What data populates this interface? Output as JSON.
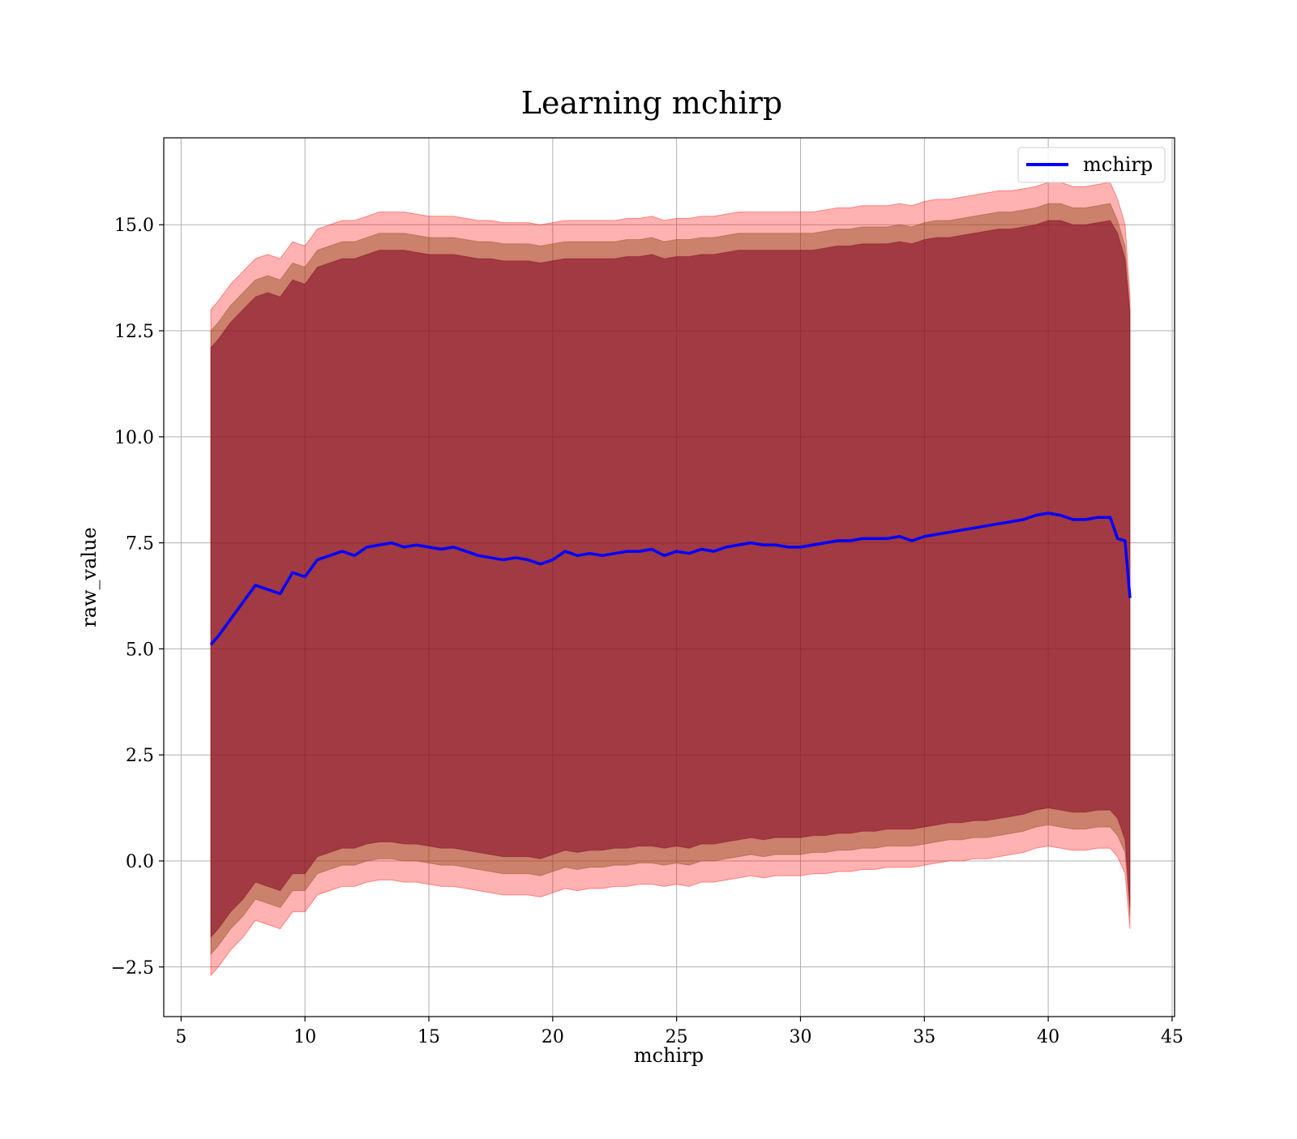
{
  "chart_data": {
    "type": "line",
    "title": "Learning mchirp",
    "xlabel": "mchirp",
    "ylabel": "raw_value",
    "xlim": [
      4.3,
      45.1
    ],
    "ylim": [
      -3.67,
      17.05
    ],
    "xticks": [
      5,
      10,
      15,
      20,
      25,
      30,
      35,
      40,
      45
    ],
    "xtick_labels": [
      "5",
      "10",
      "15",
      "20",
      "25",
      "30",
      "35",
      "40",
      "45"
    ],
    "yticks": [
      -2.5,
      0.0,
      2.5,
      5.0,
      7.5,
      10.0,
      12.5,
      15.0
    ],
    "ytick_labels": [
      "−2.5",
      "0.0",
      "2.5",
      "5.0",
      "7.5",
      "10.0",
      "12.5",
      "15.0"
    ],
    "grid": true,
    "legend_position": "top-right",
    "colors": {
      "line": "#0000ff",
      "outer_band": "#ff0000",
      "mid_band": "#8b4513",
      "inner_band": "#800020"
    },
    "series": [
      {
        "name": "mchirp",
        "x": [
          6.2,
          6.5,
          7.0,
          7.5,
          8.0,
          8.5,
          9.0,
          9.5,
          10.0,
          10.5,
          11.0,
          11.5,
          12.0,
          12.5,
          13.0,
          13.5,
          14.0,
          14.5,
          15.0,
          15.5,
          16.0,
          16.5,
          17.0,
          17.5,
          18.0,
          18.5,
          19.0,
          19.5,
          20.0,
          20.5,
          21.0,
          21.5,
          22.0,
          22.5,
          23.0,
          23.5,
          24.0,
          24.5,
          25.0,
          25.5,
          26.0,
          26.5,
          27.0,
          27.5,
          28.0,
          28.5,
          29.0,
          29.5,
          30.0,
          30.5,
          31.0,
          31.5,
          32.0,
          32.5,
          33.0,
          33.5,
          34.0,
          34.5,
          35.0,
          35.5,
          36.0,
          36.5,
          37.0,
          37.5,
          38.0,
          38.5,
          39.0,
          39.5,
          40.0,
          40.5,
          41.0,
          41.5,
          42.0,
          42.5,
          42.8,
          43.1,
          43.3
        ],
        "values": [
          5.1,
          5.3,
          5.7,
          6.1,
          6.5,
          6.4,
          6.3,
          6.8,
          6.7,
          7.1,
          7.2,
          7.3,
          7.2,
          7.4,
          7.45,
          7.5,
          7.4,
          7.45,
          7.4,
          7.35,
          7.4,
          7.3,
          7.2,
          7.15,
          7.1,
          7.15,
          7.1,
          7.0,
          7.1,
          7.3,
          7.2,
          7.25,
          7.2,
          7.25,
          7.3,
          7.3,
          7.35,
          7.2,
          7.3,
          7.25,
          7.35,
          7.3,
          7.4,
          7.45,
          7.5,
          7.45,
          7.45,
          7.4,
          7.4,
          7.45,
          7.5,
          7.55,
          7.55,
          7.6,
          7.6,
          7.6,
          7.65,
          7.55,
          7.65,
          7.7,
          7.75,
          7.8,
          7.85,
          7.9,
          7.95,
          8.0,
          8.05,
          8.15,
          8.2,
          8.15,
          8.05,
          8.05,
          8.1,
          8.1,
          7.6,
          7.55,
          6.2
        ]
      }
    ],
    "bands": [
      {
        "upper": [
          13.0,
          13.2,
          13.6,
          13.9,
          14.2,
          14.3,
          14.2,
          14.6,
          14.5,
          14.9,
          15.0,
          15.1,
          15.1,
          15.2,
          15.3,
          15.3,
          15.3,
          15.25,
          15.2,
          15.2,
          15.2,
          15.15,
          15.1,
          15.1,
          15.05,
          15.05,
          15.05,
          15.0,
          15.05,
          15.1,
          15.1,
          15.1,
          15.1,
          15.1,
          15.15,
          15.15,
          15.2,
          15.1,
          15.15,
          15.15,
          15.2,
          15.2,
          15.25,
          15.3,
          15.3,
          15.3,
          15.3,
          15.3,
          15.3,
          15.3,
          15.35,
          15.4,
          15.4,
          15.45,
          15.45,
          15.45,
          15.5,
          15.45,
          15.55,
          15.6,
          15.6,
          15.65,
          15.7,
          15.75,
          15.8,
          15.8,
          15.85,
          15.9,
          16.0,
          16.0,
          15.9,
          15.9,
          15.95,
          16.0,
          15.6,
          15.0,
          13.3
        ],
        "lower": [
          -2.7,
          -2.5,
          -2.1,
          -1.8,
          -1.4,
          -1.5,
          -1.6,
          -1.2,
          -1.2,
          -0.8,
          -0.7,
          -0.6,
          -0.6,
          -0.5,
          -0.45,
          -0.45,
          -0.5,
          -0.5,
          -0.55,
          -0.6,
          -0.6,
          -0.65,
          -0.7,
          -0.75,
          -0.8,
          -0.8,
          -0.8,
          -0.85,
          -0.75,
          -0.65,
          -0.7,
          -0.65,
          -0.65,
          -0.6,
          -0.6,
          -0.55,
          -0.55,
          -0.6,
          -0.55,
          -0.6,
          -0.5,
          -0.5,
          -0.45,
          -0.4,
          -0.35,
          -0.4,
          -0.35,
          -0.35,
          -0.35,
          -0.3,
          -0.3,
          -0.25,
          -0.25,
          -0.2,
          -0.2,
          -0.15,
          -0.15,
          -0.15,
          -0.1,
          -0.05,
          0.0,
          0.0,
          0.05,
          0.05,
          0.1,
          0.15,
          0.2,
          0.3,
          0.35,
          0.3,
          0.25,
          0.25,
          0.3,
          0.3,
          0.1,
          -0.3,
          -1.6
        ]
      },
      {
        "upper": [
          12.5,
          12.7,
          13.1,
          13.4,
          13.7,
          13.8,
          13.7,
          14.1,
          14.0,
          14.4,
          14.5,
          14.6,
          14.6,
          14.7,
          14.8,
          14.8,
          14.8,
          14.75,
          14.7,
          14.7,
          14.7,
          14.65,
          14.6,
          14.6,
          14.55,
          14.55,
          14.55,
          14.5,
          14.55,
          14.6,
          14.6,
          14.6,
          14.6,
          14.6,
          14.65,
          14.65,
          14.7,
          14.6,
          14.65,
          14.65,
          14.7,
          14.7,
          14.75,
          14.8,
          14.8,
          14.8,
          14.8,
          14.8,
          14.8,
          14.8,
          14.85,
          14.9,
          14.9,
          14.95,
          14.95,
          14.95,
          15.0,
          14.95,
          15.05,
          15.1,
          15.1,
          15.15,
          15.2,
          15.25,
          15.3,
          15.3,
          15.35,
          15.4,
          15.5,
          15.5,
          15.4,
          15.4,
          15.45,
          15.5,
          15.1,
          14.5,
          13.0
        ],
        "lower": [
          -2.2,
          -2.0,
          -1.6,
          -1.3,
          -0.9,
          -1.0,
          -1.1,
          -0.7,
          -0.7,
          -0.3,
          -0.2,
          -0.1,
          -0.1,
          0.0,
          0.05,
          0.05,
          0.0,
          0.0,
          -0.05,
          -0.1,
          -0.1,
          -0.15,
          -0.2,
          -0.25,
          -0.3,
          -0.3,
          -0.3,
          -0.35,
          -0.25,
          -0.15,
          -0.2,
          -0.15,
          -0.15,
          -0.1,
          -0.1,
          -0.05,
          -0.05,
          -0.1,
          -0.05,
          -0.1,
          0.0,
          0.0,
          0.05,
          0.1,
          0.15,
          0.1,
          0.15,
          0.15,
          0.15,
          0.2,
          0.2,
          0.25,
          0.25,
          0.3,
          0.3,
          0.35,
          0.35,
          0.35,
          0.4,
          0.45,
          0.5,
          0.5,
          0.55,
          0.55,
          0.6,
          0.65,
          0.7,
          0.8,
          0.85,
          0.8,
          0.75,
          0.75,
          0.8,
          0.8,
          0.6,
          0.2,
          -1.3
        ]
      },
      {
        "upper": [
          12.1,
          12.3,
          12.7,
          13.0,
          13.3,
          13.4,
          13.3,
          13.7,
          13.6,
          14.0,
          14.1,
          14.2,
          14.2,
          14.3,
          14.4,
          14.4,
          14.4,
          14.35,
          14.3,
          14.3,
          14.3,
          14.25,
          14.2,
          14.2,
          14.15,
          14.15,
          14.15,
          14.1,
          14.15,
          14.2,
          14.2,
          14.2,
          14.2,
          14.2,
          14.25,
          14.25,
          14.3,
          14.2,
          14.25,
          14.25,
          14.3,
          14.3,
          14.35,
          14.4,
          14.4,
          14.4,
          14.4,
          14.4,
          14.4,
          14.4,
          14.45,
          14.5,
          14.5,
          14.55,
          14.55,
          14.55,
          14.6,
          14.55,
          14.65,
          14.7,
          14.7,
          14.75,
          14.8,
          14.85,
          14.9,
          14.9,
          14.95,
          15.0,
          15.1,
          15.1,
          15.0,
          15.0,
          15.05,
          15.1,
          14.8,
          14.2,
          12.9
        ],
        "lower": [
          -1.8,
          -1.6,
          -1.2,
          -0.9,
          -0.5,
          -0.6,
          -0.7,
          -0.3,
          -0.3,
          0.1,
          0.2,
          0.3,
          0.3,
          0.4,
          0.45,
          0.45,
          0.4,
          0.4,
          0.35,
          0.3,
          0.3,
          0.25,
          0.2,
          0.15,
          0.1,
          0.1,
          0.1,
          0.05,
          0.15,
          0.25,
          0.2,
          0.25,
          0.25,
          0.3,
          0.3,
          0.35,
          0.35,
          0.3,
          0.35,
          0.3,
          0.4,
          0.4,
          0.45,
          0.5,
          0.55,
          0.5,
          0.55,
          0.55,
          0.55,
          0.6,
          0.6,
          0.65,
          0.65,
          0.7,
          0.7,
          0.75,
          0.75,
          0.75,
          0.8,
          0.85,
          0.9,
          0.9,
          0.95,
          0.95,
          1.0,
          1.05,
          1.1,
          1.2,
          1.25,
          1.2,
          1.15,
          1.15,
          1.2,
          1.2,
          1.0,
          0.5,
          -1.1
        ]
      }
    ]
  }
}
